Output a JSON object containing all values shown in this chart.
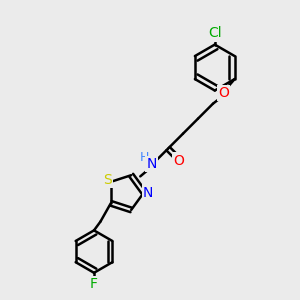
{
  "bg_color": "#ebebeb",
  "bond_color": "#000000",
  "bond_width": 1.8,
  "atom_colors": {
    "O": "#ff0000",
    "N": "#0000ff",
    "S": "#cccc00",
    "Cl": "#00aa00",
    "F": "#00aa00",
    "H": "#4488ff",
    "C": "#000000"
  },
  "font_size": 10,
  "fig_size": [
    3.0,
    3.0
  ],
  "dpi": 100
}
